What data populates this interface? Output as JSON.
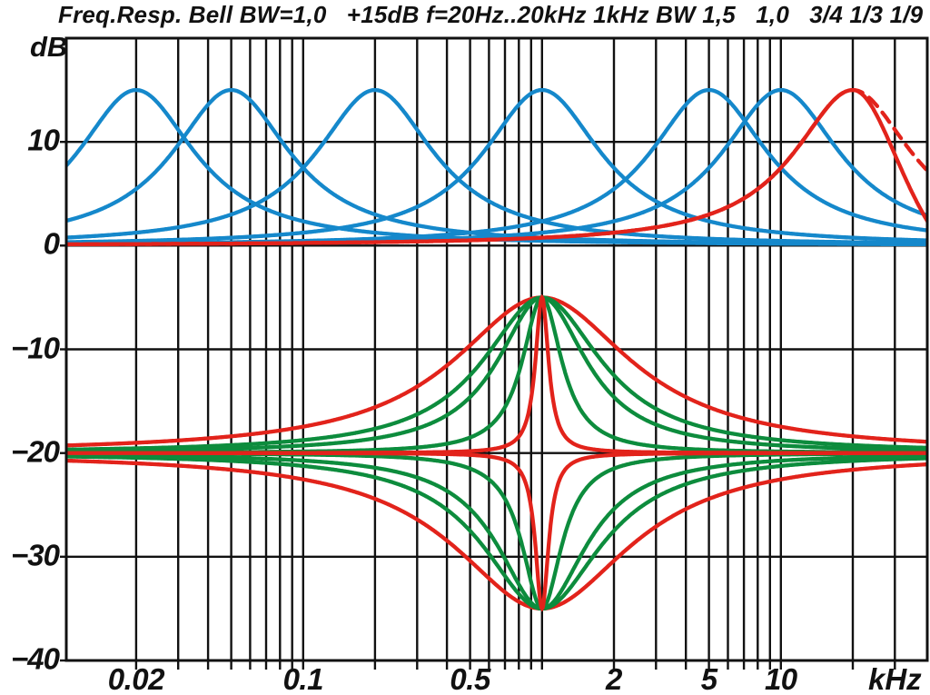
{
  "title": "Freq.Resp. Bell BW=1,0   +15dB f=20Hz..20kHz 1kHz BW 1,5   1,0   3/4 1/3 1/9",
  "y_axis": {
    "unit": "dB",
    "ticks": [
      {
        "label": "10",
        "db": 10
      },
      {
        "label": "0",
        "db": 0
      },
      {
        "label": "−10",
        "db": -10
      },
      {
        "label": "−20",
        "db": -20
      },
      {
        "label": "−30",
        "db": -30
      },
      {
        "label": "−40",
        "db": -40
      }
    ]
  },
  "x_axis": {
    "unit": "kHz",
    "unit_khz_position": 30,
    "ticks": [
      {
        "label": "0.02",
        "khz": 0.02
      },
      {
        "label": "0.1",
        "khz": 0.1
      },
      {
        "label": "0.5",
        "khz": 0.5
      },
      {
        "label": "2",
        "khz": 2
      },
      {
        "label": "5",
        "khz": 5
      },
      {
        "label": "10",
        "khz": 10
      }
    ]
  },
  "colors": {
    "blue": "#1588CB",
    "red": "#E2231B",
    "green": "#0D8C3D",
    "grid": "#111111",
    "text": "#111111",
    "background": "#FFFFFF"
  },
  "chart_data": {
    "type": "line",
    "title": "Freq.Resp. Bell BW=1,0 +15dB f=20Hz..20kHz 1kHz BW 1,5 1,0 3/4 1/3 1/9",
    "x_scale": "log",
    "xlabel": "kHz",
    "ylabel": "dB",
    "x_range_khz": [
      0.0102,
      41
    ],
    "y_range_db": [
      -40,
      20
    ],
    "grid_db_lines": [
      10,
      0,
      -10,
      -20,
      -30
    ],
    "grid_decades_khz": [
      0.01,
      0.1,
      1,
      10
    ],
    "top_family_peak_db": 15,
    "bottom_family_center_khz": 1,
    "bottom_family_baseline_db": -20,
    "series": [
      {
        "name": "bell-20hz",
        "type": "bell",
        "f0_khz": 0.02,
        "gain_db": 15,
        "bw_oct": 1.0,
        "baseline_db": 0,
        "color": "blue",
        "style": "solid"
      },
      {
        "name": "bell-50hz",
        "type": "bell",
        "f0_khz": 0.05,
        "gain_db": 15,
        "bw_oct": 1.0,
        "baseline_db": 0,
        "color": "blue",
        "style": "solid"
      },
      {
        "name": "bell-200hz",
        "type": "bell",
        "f0_khz": 0.2,
        "gain_db": 15,
        "bw_oct": 1.0,
        "baseline_db": 0,
        "color": "blue",
        "style": "solid"
      },
      {
        "name": "bell-1khz",
        "type": "bell",
        "f0_khz": 1,
        "gain_db": 15,
        "bw_oct": 1.0,
        "baseline_db": 0,
        "color": "blue",
        "style": "solid"
      },
      {
        "name": "bell-5khz",
        "type": "bell",
        "f0_khz": 5,
        "gain_db": 15,
        "bw_oct": 1.0,
        "baseline_db": 0,
        "color": "blue",
        "style": "solid"
      },
      {
        "name": "bell-10khz",
        "type": "bell",
        "f0_khz": 10,
        "gain_db": 15,
        "bw_oct": 1.0,
        "baseline_db": 0,
        "color": "blue",
        "style": "solid"
      },
      {
        "name": "bell-20khz-analog-dashed",
        "type": "bell",
        "f0_khz": 20,
        "gain_db": 15,
        "bw_oct": 1.0,
        "baseline_db": 0,
        "color": "red",
        "style": "dashed"
      },
      {
        "name": "bell-20khz-digital",
        "type": "bell",
        "f0_khz": 20,
        "gain_db": 15,
        "bw_oct": 1.0,
        "baseline_db": 0,
        "color": "red",
        "style": "solid",
        "droop_nyquist_khz": 48
      },
      {
        "name": "boost-1khz-bw-1-5",
        "type": "bell",
        "f0_khz": 1,
        "gain_db": 15,
        "bw_oct": 1.5,
        "baseline_db": -20,
        "color": "red",
        "style": "solid"
      },
      {
        "name": "boost-1khz-bw-1-0",
        "type": "bell",
        "f0_khz": 1,
        "gain_db": 15,
        "bw_oct": 1.0,
        "baseline_db": -20,
        "color": "green",
        "style": "solid"
      },
      {
        "name": "boost-1khz-bw-3-4",
        "type": "bell",
        "f0_khz": 1,
        "gain_db": 15,
        "bw_oct": 0.75,
        "baseline_db": -20,
        "color": "green",
        "style": "solid"
      },
      {
        "name": "boost-1khz-bw-1-3",
        "type": "bell",
        "f0_khz": 1,
        "gain_db": 15,
        "bw_oct": 0.3333,
        "baseline_db": -20,
        "color": "green",
        "style": "solid"
      },
      {
        "name": "boost-1khz-bw-1-9",
        "type": "bell",
        "f0_khz": 1,
        "gain_db": 15,
        "bw_oct": 0.1111,
        "baseline_db": -20,
        "color": "red",
        "style": "solid"
      },
      {
        "name": "cut-1khz-bw-1-5",
        "type": "bell",
        "f0_khz": 1,
        "gain_db": -15,
        "bw_oct": 1.5,
        "baseline_db": -20,
        "color": "red",
        "style": "solid"
      },
      {
        "name": "cut-1khz-bw-1-0",
        "type": "bell",
        "f0_khz": 1,
        "gain_db": -15,
        "bw_oct": 1.0,
        "baseline_db": -20,
        "color": "green",
        "style": "solid"
      },
      {
        "name": "cut-1khz-bw-3-4",
        "type": "bell",
        "f0_khz": 1,
        "gain_db": -15,
        "bw_oct": 0.75,
        "baseline_db": -20,
        "color": "green",
        "style": "solid"
      },
      {
        "name": "cut-1khz-bw-1-3",
        "type": "bell",
        "f0_khz": 1,
        "gain_db": -15,
        "bw_oct": 0.3333,
        "baseline_db": -20,
        "color": "green",
        "style": "solid"
      },
      {
        "name": "cut-1khz-bw-1-9",
        "type": "bell",
        "f0_khz": 1,
        "gain_db": -15,
        "bw_oct": 0.1111,
        "baseline_db": -20,
        "color": "red",
        "style": "solid"
      }
    ]
  }
}
